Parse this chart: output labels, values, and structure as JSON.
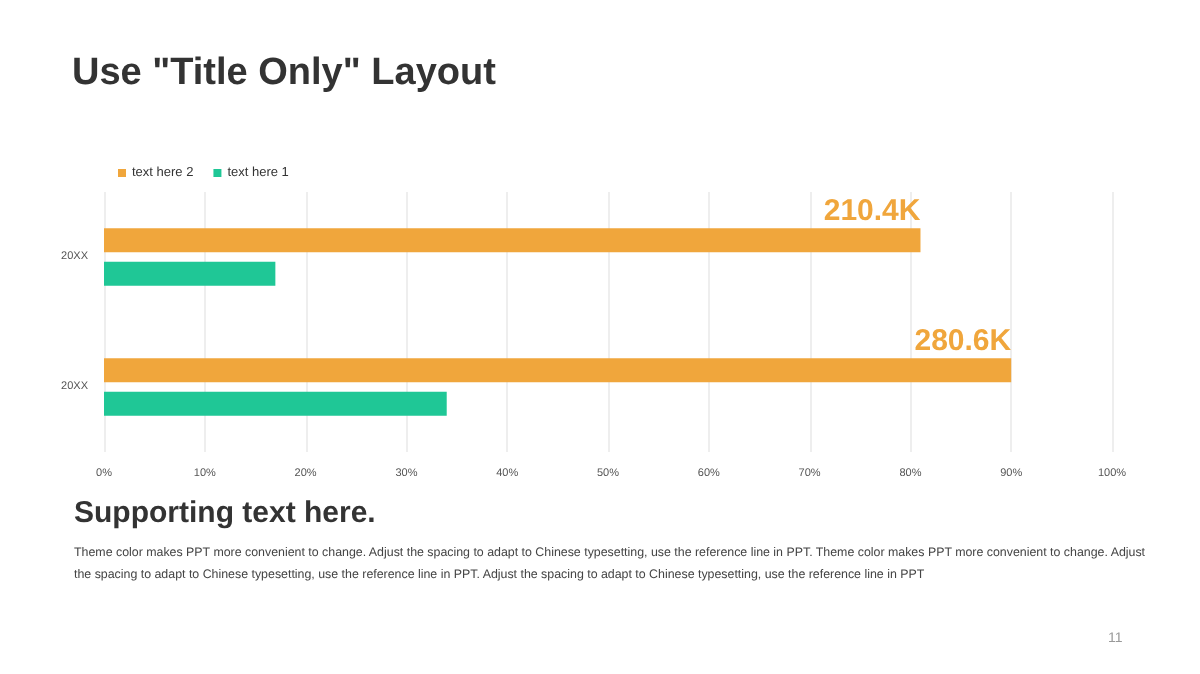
{
  "chart_data": {
    "type": "bar",
    "orientation": "horizontal",
    "title": "Use \"Title Only\" Layout",
    "categories": [
      "20XX",
      "20XX"
    ],
    "series": [
      {
        "name": "text here 2",
        "color": "#f0a63c",
        "values": [
          81,
          90
        ]
      },
      {
        "name": "text here 1",
        "color": "#1fc796",
        "values": [
          17,
          34
        ]
      }
    ],
    "xlim": [
      0,
      100
    ],
    "xticks": [
      {
        "value": 0,
        "label": "0%"
      },
      {
        "value": 10,
        "label": "10%"
      },
      {
        "value": 20,
        "label": "20%"
      },
      {
        "value": 30,
        "label": "30%"
      },
      {
        "value": 40,
        "label": "40%"
      },
      {
        "value": 50,
        "label": "50%"
      },
      {
        "value": 60,
        "label": "60%"
      },
      {
        "value": 70,
        "label": "70%"
      },
      {
        "value": 80,
        "label": "80%"
      },
      {
        "value": 90,
        "label": "90%"
      },
      {
        "value": 100,
        "label": "100%"
      }
    ],
    "grid": "x",
    "legend": "top left",
    "annotations": [
      "210.4K",
      "280.6K",
      "Supporting text here.",
      "Theme color makes PPT more convenient to change. Adjust the spacing to adapt to Chinese  typesetting, use the reference line in PPT. Theme color makes PPT more convenient to change. Adjust the spacing to adapt to Chinese typesetting, use the reference line in PPT. Adjust the spacing to adapt to Chinese typesetting, use the reference line in PPT",
      "11"
    ]
  }
}
